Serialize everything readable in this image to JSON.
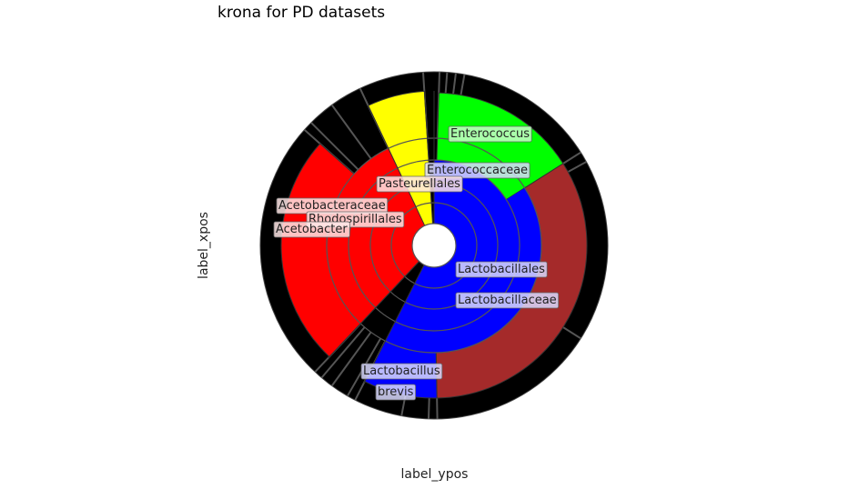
{
  "chart_data": {
    "type": "sunburst",
    "title": "krona for PD datasets",
    "xlabel": "label_ypos",
    "ylabel": "label_xpos",
    "grid": true,
    "legend": "none",
    "inner_rings": [
      {
        "ring": 1,
        "segments": [
          {
            "name": "Lactobacillales",
            "start": 0.0,
            "end": 0.575,
            "color": "#0000ff"
          },
          {
            "name": "Rhodospirillales",
            "start": 0.62,
            "end": 0.93,
            "color": "#ff0000"
          },
          {
            "name": "Pasteurellales",
            "start": 0.93,
            "end": 0.99,
            "color": "#ffff00"
          }
        ]
      },
      {
        "ring": 2,
        "segments": [
          {
            "name": "Lactobacillaceae",
            "start": 0.0,
            "end": 0.575,
            "color": "#0000ff"
          },
          {
            "name": "Acetobacteraceae",
            "start": 0.62,
            "end": 0.93,
            "color": "#ff0000"
          }
        ]
      },
      {
        "ring": 3,
        "segments": [
          {
            "name": "Enterococcaceae",
            "start": 0.0,
            "end": 0.575,
            "color": "#0000ff"
          },
          {
            "name": "Acetobacter",
            "start": 0.62,
            "end": 0.93,
            "color": "#ff0000"
          }
        ]
      },
      {
        "ring": 4,
        "segments": [
          {
            "name": "Lactobacillus",
            "start": 0.16,
            "end": 0.575,
            "color": "#0000ff"
          },
          {
            "name": "Acetobacter",
            "start": 0.62,
            "end": 0.93,
            "color": "#ff0000"
          }
        ]
      }
    ],
    "outer_sections": [
      {
        "name": "Enterococcus",
        "start": 0.005,
        "end": 0.16,
        "color": "#00ff00"
      },
      {
        "name": "Lactobacillus",
        "start": 0.16,
        "end": 0.497,
        "color": "#a52a2a"
      },
      {
        "name": "brevis",
        "start": 0.497,
        "end": 0.575,
        "color": "#0000ff"
      },
      {
        "name": "Acetobacter",
        "start": 0.62,
        "end": 0.866,
        "color": "#ff0000"
      },
      {
        "name": "Pasteurellales",
        "start": 0.93,
        "end": 0.99,
        "color": "#ffff00"
      }
    ],
    "labels": [
      {
        "text": "Enterococcus",
        "color": "#c8ffc8"
      },
      {
        "text": "Enterococcaceae",
        "color": "#d9d9ff"
      },
      {
        "text": "Pasteurellales",
        "color": "#ffe6e6"
      },
      {
        "text": "Acetobacteraceae",
        "color": "#ffe6e6"
      },
      {
        "text": "Rhodospirillales",
        "color": "#ffe6e6"
      },
      {
        "text": "Acetobacter",
        "color": "#ffe6e6"
      },
      {
        "text": "Lactobacillales",
        "color": "#d9d9ff"
      },
      {
        "text": "Lactobacillaceae",
        "color": "#d9d9ff"
      },
      {
        "text": "Lactobacillus",
        "color": "#d9d9ff"
      },
      {
        "text": "brevis",
        "color": "#d9d9ff"
      }
    ]
  }
}
